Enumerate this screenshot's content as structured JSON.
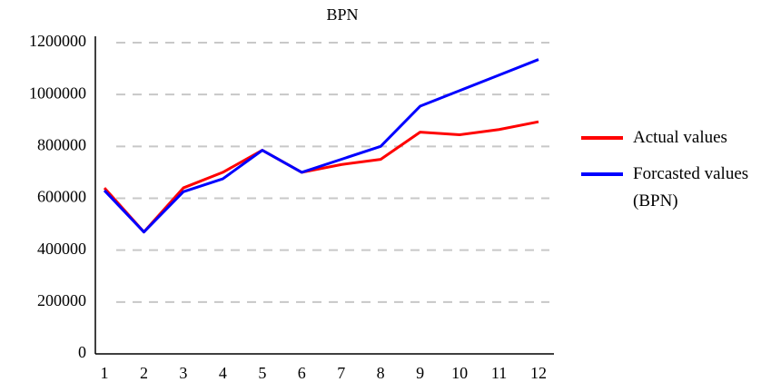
{
  "chart_data": {
    "type": "line",
    "title": "BPN",
    "categories": [
      "1",
      "2",
      "3",
      "4",
      "5",
      "6",
      "7",
      "8",
      "9",
      "10",
      "11",
      "12"
    ],
    "series": [
      {
        "name": "Actual values",
        "color": "#ff0000",
        "values": [
          640000,
          470000,
          640000,
          700000,
          785000,
          700000,
          730000,
          750000,
          855000,
          845000,
          865000,
          895000
        ]
      },
      {
        "name": "Forcasted values (BPN)",
        "color": "#0000ff",
        "values": [
          630000,
          470000,
          625000,
          675000,
          785000,
          700000,
          750000,
          800000,
          955000,
          1015000,
          1075000,
          1135000
        ]
      }
    ],
    "ylim": [
      0,
      1200000
    ],
    "yticks": [
      0,
      200000,
      400000,
      600000,
      800000,
      1000000,
      1200000
    ],
    "grid": true,
    "legend": "right"
  }
}
